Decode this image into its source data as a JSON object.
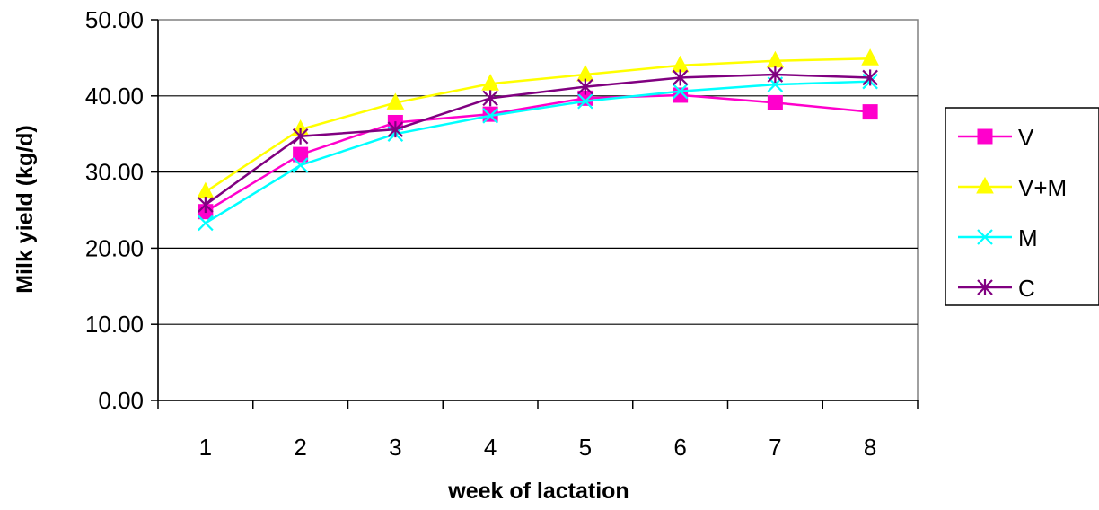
{
  "chart_data": {
    "type": "line",
    "title": "",
    "xlabel": "week of lactation",
    "ylabel": "Milk yield (kg/d)",
    "ylim": [
      0,
      50
    ],
    "ytick_labels": [
      "0.00",
      "10.00",
      "20.00",
      "30.00",
      "40.00",
      "50.00"
    ],
    "categories": [
      "1",
      "2",
      "3",
      "4",
      "5",
      "6",
      "7",
      "8"
    ],
    "grid": "horizontal major gridlines",
    "legend_position": "right",
    "series": [
      {
        "name": "V",
        "marker": "square",
        "color": "#FF00CC",
        "values": [
          24.8,
          32.3,
          36.5,
          37.6,
          39.7,
          40.1,
          39.1,
          37.9
        ]
      },
      {
        "name": "V+M",
        "marker": "triangle",
        "color": "#FFFF00",
        "values": [
          27.4,
          35.6,
          39.1,
          41.6,
          42.8,
          44.0,
          44.6,
          44.9
        ]
      },
      {
        "name": "M",
        "marker": "x",
        "color": "#00FFFF",
        "values": [
          23.3,
          30.9,
          35.0,
          37.4,
          39.3,
          40.6,
          41.5,
          41.9
        ]
      },
      {
        "name": "C",
        "marker": "asterisk",
        "color": "#800080",
        "values": [
          25.7,
          34.7,
          35.6,
          39.7,
          41.2,
          42.4,
          42.8,
          42.4
        ]
      }
    ]
  }
}
